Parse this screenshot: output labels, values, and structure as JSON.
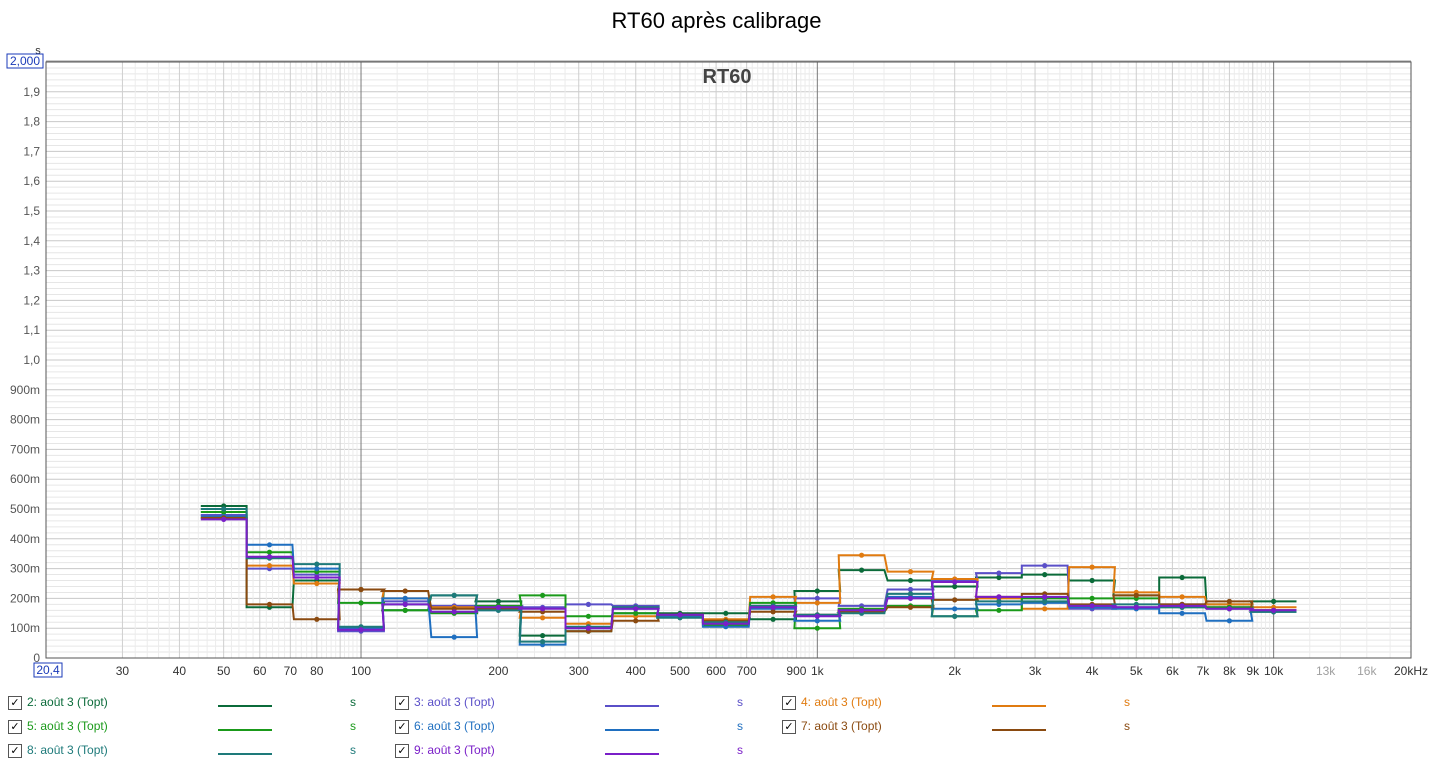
{
  "title": "RT60 après calibrage",
  "chart_data": {
    "type": "line",
    "title": "RT60 après calibrage",
    "inner_title": "RT60",
    "y_unit_label": "s",
    "y_top_box": "2,000",
    "x_left_box": "20,4",
    "x_scale": "log",
    "xlim": [
      20.4,
      20000
    ],
    "ylim": [
      0,
      2.0
    ],
    "grid": true,
    "y_ticks": [
      {
        "v": 0.1,
        "label": "100m"
      },
      {
        "v": 0.2,
        "label": "200m"
      },
      {
        "v": 0.3,
        "label": "300m"
      },
      {
        "v": 0.4,
        "label": "400m"
      },
      {
        "v": 0.5,
        "label": "500m"
      },
      {
        "v": 0.6,
        "label": "600m"
      },
      {
        "v": 0.7,
        "label": "700m"
      },
      {
        "v": 0.8,
        "label": "800m"
      },
      {
        "v": 0.9,
        "label": "900m"
      },
      {
        "v": 1.0,
        "label": "1,0"
      },
      {
        "v": 1.1,
        "label": "1,1"
      },
      {
        "v": 1.2,
        "label": "1,2"
      },
      {
        "v": 1.3,
        "label": "1,3"
      },
      {
        "v": 1.4,
        "label": "1,4"
      },
      {
        "v": 1.5,
        "label": "1,5"
      },
      {
        "v": 1.6,
        "label": "1,6"
      },
      {
        "v": 1.7,
        "label": "1,7"
      },
      {
        "v": 1.8,
        "label": "1,8"
      },
      {
        "v": 1.9,
        "label": "1,9"
      },
      {
        "v": 0,
        "label": "0"
      }
    ],
    "x_ticks": [
      {
        "v": 30,
        "label": "30"
      },
      {
        "v": 40,
        "label": "40"
      },
      {
        "v": 50,
        "label": "50"
      },
      {
        "v": 60,
        "label": "60"
      },
      {
        "v": 70,
        "label": "70"
      },
      {
        "v": 80,
        "label": "80"
      },
      {
        "v": 100,
        "label": "100"
      },
      {
        "v": 200,
        "label": "200"
      },
      {
        "v": 300,
        "label": "300"
      },
      {
        "v": 400,
        "label": "400"
      },
      {
        "v": 500,
        "label": "500"
      },
      {
        "v": 600,
        "label": "600"
      },
      {
        "v": 700,
        "label": "700"
      },
      {
        "v": 900,
        "label": "900"
      },
      {
        "v": 1000,
        "label": "1k"
      },
      {
        "v": 2000,
        "label": "2k"
      },
      {
        "v": 3000,
        "label": "3k"
      },
      {
        "v": 4000,
        "label": "4k"
      },
      {
        "v": 5000,
        "label": "5k"
      },
      {
        "v": 6000,
        "label": "6k"
      },
      {
        "v": 7000,
        "label": "7k"
      },
      {
        "v": 8000,
        "label": "8k"
      },
      {
        "v": 9000,
        "label": "9k"
      },
      {
        "v": 10000,
        "label": "10k"
      },
      {
        "v": 13000,
        "label": "13k",
        "faded": true
      },
      {
        "v": 16000,
        "label": "16k",
        "faded": true
      },
      {
        "v": 20000,
        "label": "20kHz"
      }
    ],
    "bands_hz": [
      50,
      63,
      80,
      100,
      125,
      160,
      200,
      250,
      315,
      400,
      500,
      630,
      800,
      1000,
      1250,
      1600,
      2000,
      2500,
      3150,
      4000,
      5000,
      6300,
      8000,
      10000
    ],
    "series": [
      {
        "name": "2: août 3 (Topt)",
        "color": "#0b6b3a",
        "values": [
          0.51,
          0.17,
          0.26,
          0.23,
          0.16,
          0.21,
          0.19,
          0.075,
          0.09,
          0.15,
          0.15,
          0.15,
          0.13,
          0.225,
          0.295,
          0.26,
          0.24,
          0.27,
          0.28,
          0.26,
          0.21,
          0.27,
          0.18,
          0.19
        ]
      },
      {
        "name": "3: août 3 (Topt)",
        "color": "#5a4fc8",
        "values": [
          0.48,
          0.3,
          0.28,
          0.09,
          0.19,
          0.175,
          0.175,
          0.17,
          0.18,
          0.175,
          0.14,
          0.12,
          0.175,
          0.2,
          0.175,
          0.23,
          0.26,
          0.285,
          0.31,
          0.165,
          0.17,
          0.18,
          0.17,
          0.16
        ]
      },
      {
        "name": "4: août 3 (Topt)",
        "color": "#e07b10",
        "values": [
          0.47,
          0.31,
          0.25,
          0.23,
          0.2,
          0.17,
          0.165,
          0.135,
          0.115,
          0.14,
          0.14,
          0.13,
          0.205,
          0.185,
          0.345,
          0.29,
          0.265,
          0.2,
          0.165,
          0.305,
          0.22,
          0.205,
          0.18,
          0.17
        ]
      },
      {
        "name": "5: août 3 (Topt)",
        "color": "#1a9a1a",
        "values": [
          0.49,
          0.355,
          0.29,
          0.185,
          0.16,
          0.15,
          0.175,
          0.21,
          0.14,
          0.15,
          0.14,
          0.11,
          0.185,
          0.1,
          0.165,
          0.175,
          0.14,
          0.16,
          0.2,
          0.2,
          0.2,
          0.17,
          0.17,
          0.155
        ]
      },
      {
        "name": "6: août 3 (Topt)",
        "color": "#1f6fc0",
        "values": [
          0.475,
          0.38,
          0.3,
          0.1,
          0.2,
          0.07,
          0.16,
          0.045,
          0.1,
          0.165,
          0.14,
          0.105,
          0.165,
          0.125,
          0.155,
          0.205,
          0.165,
          0.18,
          0.185,
          0.17,
          0.165,
          0.15,
          0.125,
          0.155
        ]
      },
      {
        "name": "7: août 3 (Topt)",
        "color": "#8a4a10",
        "values": [
          0.47,
          0.18,
          0.13,
          0.23,
          0.225,
          0.165,
          0.165,
          0.155,
          0.09,
          0.125,
          0.145,
          0.125,
          0.155,
          0.145,
          0.155,
          0.17,
          0.195,
          0.205,
          0.215,
          0.18,
          0.21,
          0.18,
          0.19,
          0.16
        ]
      },
      {
        "name": "8: août 3 (Topt)",
        "color": "#1e7a7a",
        "values": [
          0.5,
          0.335,
          0.315,
          0.105,
          0.18,
          0.21,
          0.16,
          0.055,
          0.105,
          0.17,
          0.135,
          0.12,
          0.175,
          0.145,
          0.15,
          0.215,
          0.14,
          0.19,
          0.19,
          0.175,
          0.18,
          0.17,
          0.165,
          0.155
        ]
      },
      {
        "name": "9: août 3 (Topt)",
        "color": "#7a1fc8",
        "values": [
          0.465,
          0.34,
          0.27,
          0.095,
          0.18,
          0.155,
          0.17,
          0.165,
          0.1,
          0.165,
          0.145,
          0.115,
          0.17,
          0.14,
          0.16,
          0.2,
          0.255,
          0.205,
          0.205,
          0.175,
          0.17,
          0.175,
          0.165,
          0.16
        ]
      }
    ],
    "legend": {
      "placement": "bottom",
      "unit": "s",
      "items": [
        {
          "label": "2: août 3 (Topt)",
          "color": "#0b6b3a",
          "checked": "✓"
        },
        {
          "label": "3: août 3 (Topt)",
          "color": "#5a4fc8",
          "checked": "✓"
        },
        {
          "label": "4: août 3 (Topt)",
          "color": "#e07b10",
          "checked": "✓"
        },
        {
          "label": "5: août 3 (Topt)",
          "color": "#1a9a1a",
          "checked": "✓"
        },
        {
          "label": "6: août 3 (Topt)",
          "color": "#1f6fc0",
          "checked": "✓"
        },
        {
          "label": "7: août 3 (Topt)",
          "color": "#8a4a10",
          "checked": "✓"
        },
        {
          "label": "8: août 3 (Topt)",
          "color": "#1e7a7a",
          "checked": "✓"
        },
        {
          "label": "9: août 3 (Topt)",
          "color": "#7a1fc8",
          "checked": "✓"
        }
      ]
    }
  }
}
